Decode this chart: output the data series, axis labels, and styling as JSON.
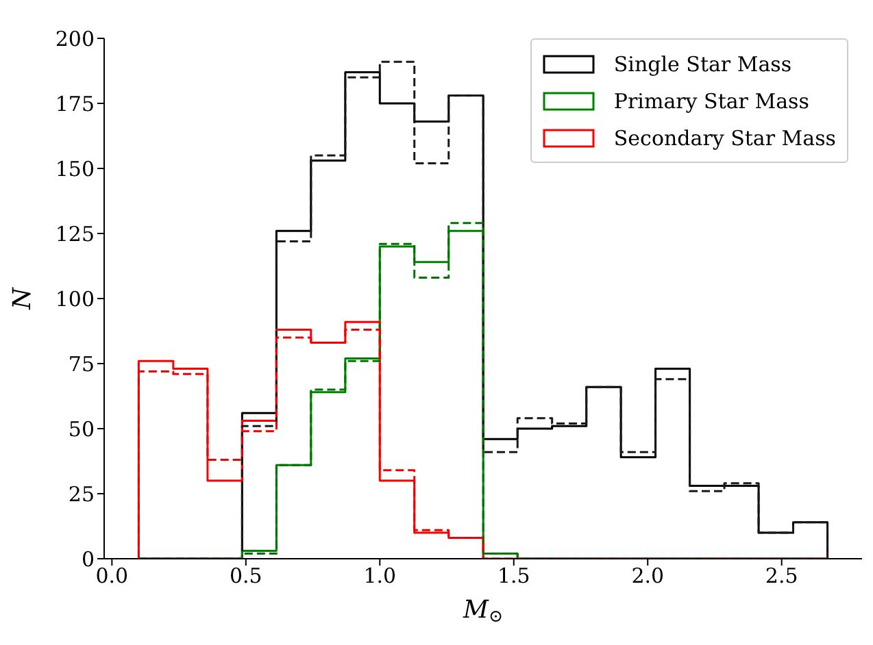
{
  "chart_data": {
    "type": "histogram",
    "xlabel": "M$_{⊙}$",
    "ylabel": "N",
    "bins": [
      0.1,
      0.229,
      0.357,
      0.486,
      0.614,
      0.743,
      0.871,
      1.0,
      1.129,
      1.257,
      1.386,
      1.514,
      1.643,
      1.771,
      1.9,
      2.029,
      2.157,
      2.286,
      2.414,
      2.543,
      2.671
    ],
    "series": [
      {
        "name": "Single Star Mass",
        "color": "#000000",
        "line_style": "solid",
        "values": [
          0,
          0,
          0,
          56,
          126,
          153,
          187,
          175,
          168,
          178,
          46,
          50,
          51,
          66,
          39,
          73,
          28,
          28,
          10,
          14
        ]
      },
      {
        "name": "Primary Star Mass",
        "color": "#008000",
        "line_style": "solid",
        "values": [
          0,
          0,
          0,
          3,
          36,
          64,
          77,
          120,
          114,
          126,
          2,
          0,
          0,
          0,
          0,
          0,
          0,
          0,
          0,
          0
        ]
      },
      {
        "name": "Secondary Star Mass",
        "color": "#ff0000",
        "line_style": "solid",
        "values": [
          76,
          73,
          30,
          53,
          88,
          83,
          91,
          30,
          10,
          8,
          0,
          0,
          0,
          0,
          0,
          0,
          0,
          0,
          0,
          0
        ]
      },
      {
        "color": "#1a1a1a",
        "line_style": "dashed",
        "values": [
          0,
          0,
          0,
          51,
          122,
          155,
          185,
          191,
          152,
          178,
          41,
          54,
          52,
          66,
          41,
          69,
          26,
          29,
          10,
          14
        ]
      },
      {
        "color": "#007300",
        "line_style": "dashed",
        "values": [
          0,
          0,
          0,
          2,
          36,
          65,
          76,
          121,
          108,
          129,
          2,
          0,
          0,
          0,
          0,
          0,
          0,
          0,
          0,
          0
        ]
      },
      {
        "color": "#f00000",
        "line_style": "dashed",
        "values": [
          72,
          71,
          38,
          49,
          85,
          83,
          88,
          34,
          11,
          8,
          0,
          0,
          0,
          0,
          0,
          0,
          0,
          0,
          0,
          0
        ]
      }
    ],
    "xlim": [
      -0.029,
      2.8
    ],
    "ylim": [
      0,
      200
    ],
    "xticks": [
      {
        "value": 0,
        "label": "0.0"
      },
      0.5,
      {
        "value": 1,
        "label": "1.0"
      },
      1.5,
      {
        "value": 2,
        "label": "2.0"
      },
      2.5
    ],
    "yticks": [
      0,
      25,
      50,
      75,
      100,
      125,
      150,
      175,
      200
    ],
    "grid": false,
    "legend": "top right"
  }
}
